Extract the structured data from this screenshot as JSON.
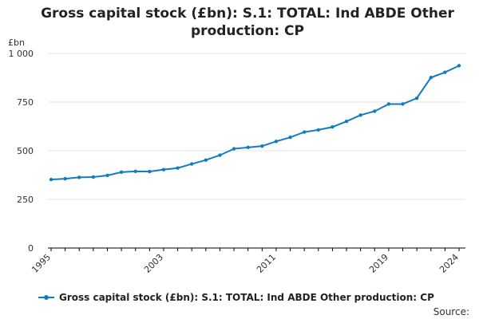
{
  "chart_data": {
    "type": "line",
    "title": "Gross capital stock (£bn): S.1: TOTAL: Ind ABDE Other production: CP",
    "ylabel": "£bn",
    "xlabel": "",
    "ylim": [
      0,
      1000
    ],
    "y_ticks": [
      "0",
      "250",
      "500",
      "750",
      "1 000"
    ],
    "y_tick_values": [
      0,
      250,
      500,
      750,
      1000
    ],
    "x_ticks": [
      "1995",
      "2003",
      "2011",
      "2019",
      "2024"
    ],
    "x_tick_values": [
      1995,
      2003,
      2011,
      2019,
      2024
    ],
    "xlim": [
      1995,
      2024
    ],
    "grid": true,
    "legend_position": "bottom-left",
    "x": [
      1995,
      1996,
      1997,
      1998,
      1999,
      2000,
      2001,
      2002,
      2003,
      2004,
      2005,
      2006,
      2007,
      2008,
      2009,
      2010,
      2011,
      2012,
      2013,
      2014,
      2015,
      2016,
      2017,
      2018,
      2019,
      2020,
      2021,
      2022,
      2023,
      2024
    ],
    "series": [
      {
        "name": "Gross capital stock (£bn): S.1: TOTAL: Ind ABDE Other production: CP",
        "color": "#0f7ec0",
        "values": [
          352,
          356,
          363,
          365,
          373,
          390,
          394,
          393,
          403,
          411,
          432,
          452,
          477,
          510,
          517,
          524,
          548,
          569,
          596,
          607,
          622,
          651,
          683,
          703,
          740,
          740,
          770,
          876,
          903,
          937
        ]
      }
    ]
  },
  "footer": {
    "source_label": "Source:"
  }
}
